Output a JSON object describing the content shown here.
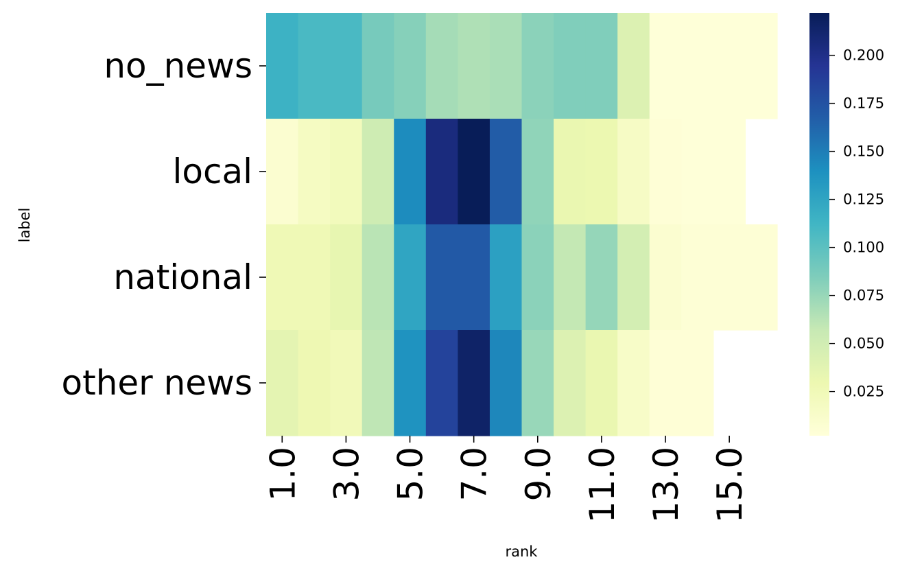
{
  "chart_data": {
    "type": "heatmap",
    "title": "",
    "xlabel": "rank",
    "ylabel": "label",
    "rows": [
      "no_news",
      "local",
      "national",
      "other news"
    ],
    "columns": [
      1.0,
      2.0,
      3.0,
      4.0,
      5.0,
      6.0,
      7.0,
      8.0,
      9.0,
      10.0,
      11.0,
      12.0,
      13.0,
      14.0,
      15.0,
      16.0
    ],
    "x_tick_labels": [
      "1.0",
      "3.0",
      "5.0",
      "7.0",
      "9.0",
      "11.0",
      "13.0",
      "15.0"
    ],
    "values": [
      [
        0.115,
        0.108,
        0.108,
        0.088,
        0.082,
        0.07,
        0.066,
        0.068,
        0.08,
        0.084,
        0.084,
        0.042,
        0.003,
        0.003,
        0.003,
        0.003
      ],
      [
        0.008,
        0.018,
        0.022,
        0.052,
        0.142,
        0.205,
        0.222,
        0.168,
        0.078,
        0.032,
        0.03,
        0.016,
        0.004,
        0.003,
        0.003,
        null
      ],
      [
        0.026,
        0.026,
        0.034,
        0.062,
        0.125,
        0.17,
        0.17,
        0.128,
        0.08,
        0.058,
        0.076,
        0.048,
        0.008,
        0.005,
        0.005,
        0.005
      ],
      [
        0.036,
        0.028,
        0.024,
        0.06,
        0.138,
        0.185,
        0.215,
        0.145,
        0.075,
        0.042,
        0.032,
        0.014,
        0.004,
        0.004,
        null,
        null
      ]
    ],
    "colormap": "YlGnBu",
    "colorbar": {
      "min": 0.002,
      "max": 0.222,
      "ticks": [
        0.025,
        0.05,
        0.075,
        0.1,
        0.125,
        0.15,
        0.175,
        0.2
      ],
      "tick_labels": [
        "0.025",
        "0.050",
        "0.075",
        "0.100",
        "0.125",
        "0.150",
        "0.175",
        "0.200"
      ]
    },
    "grid": false,
    "legend": "colorbar-right"
  }
}
